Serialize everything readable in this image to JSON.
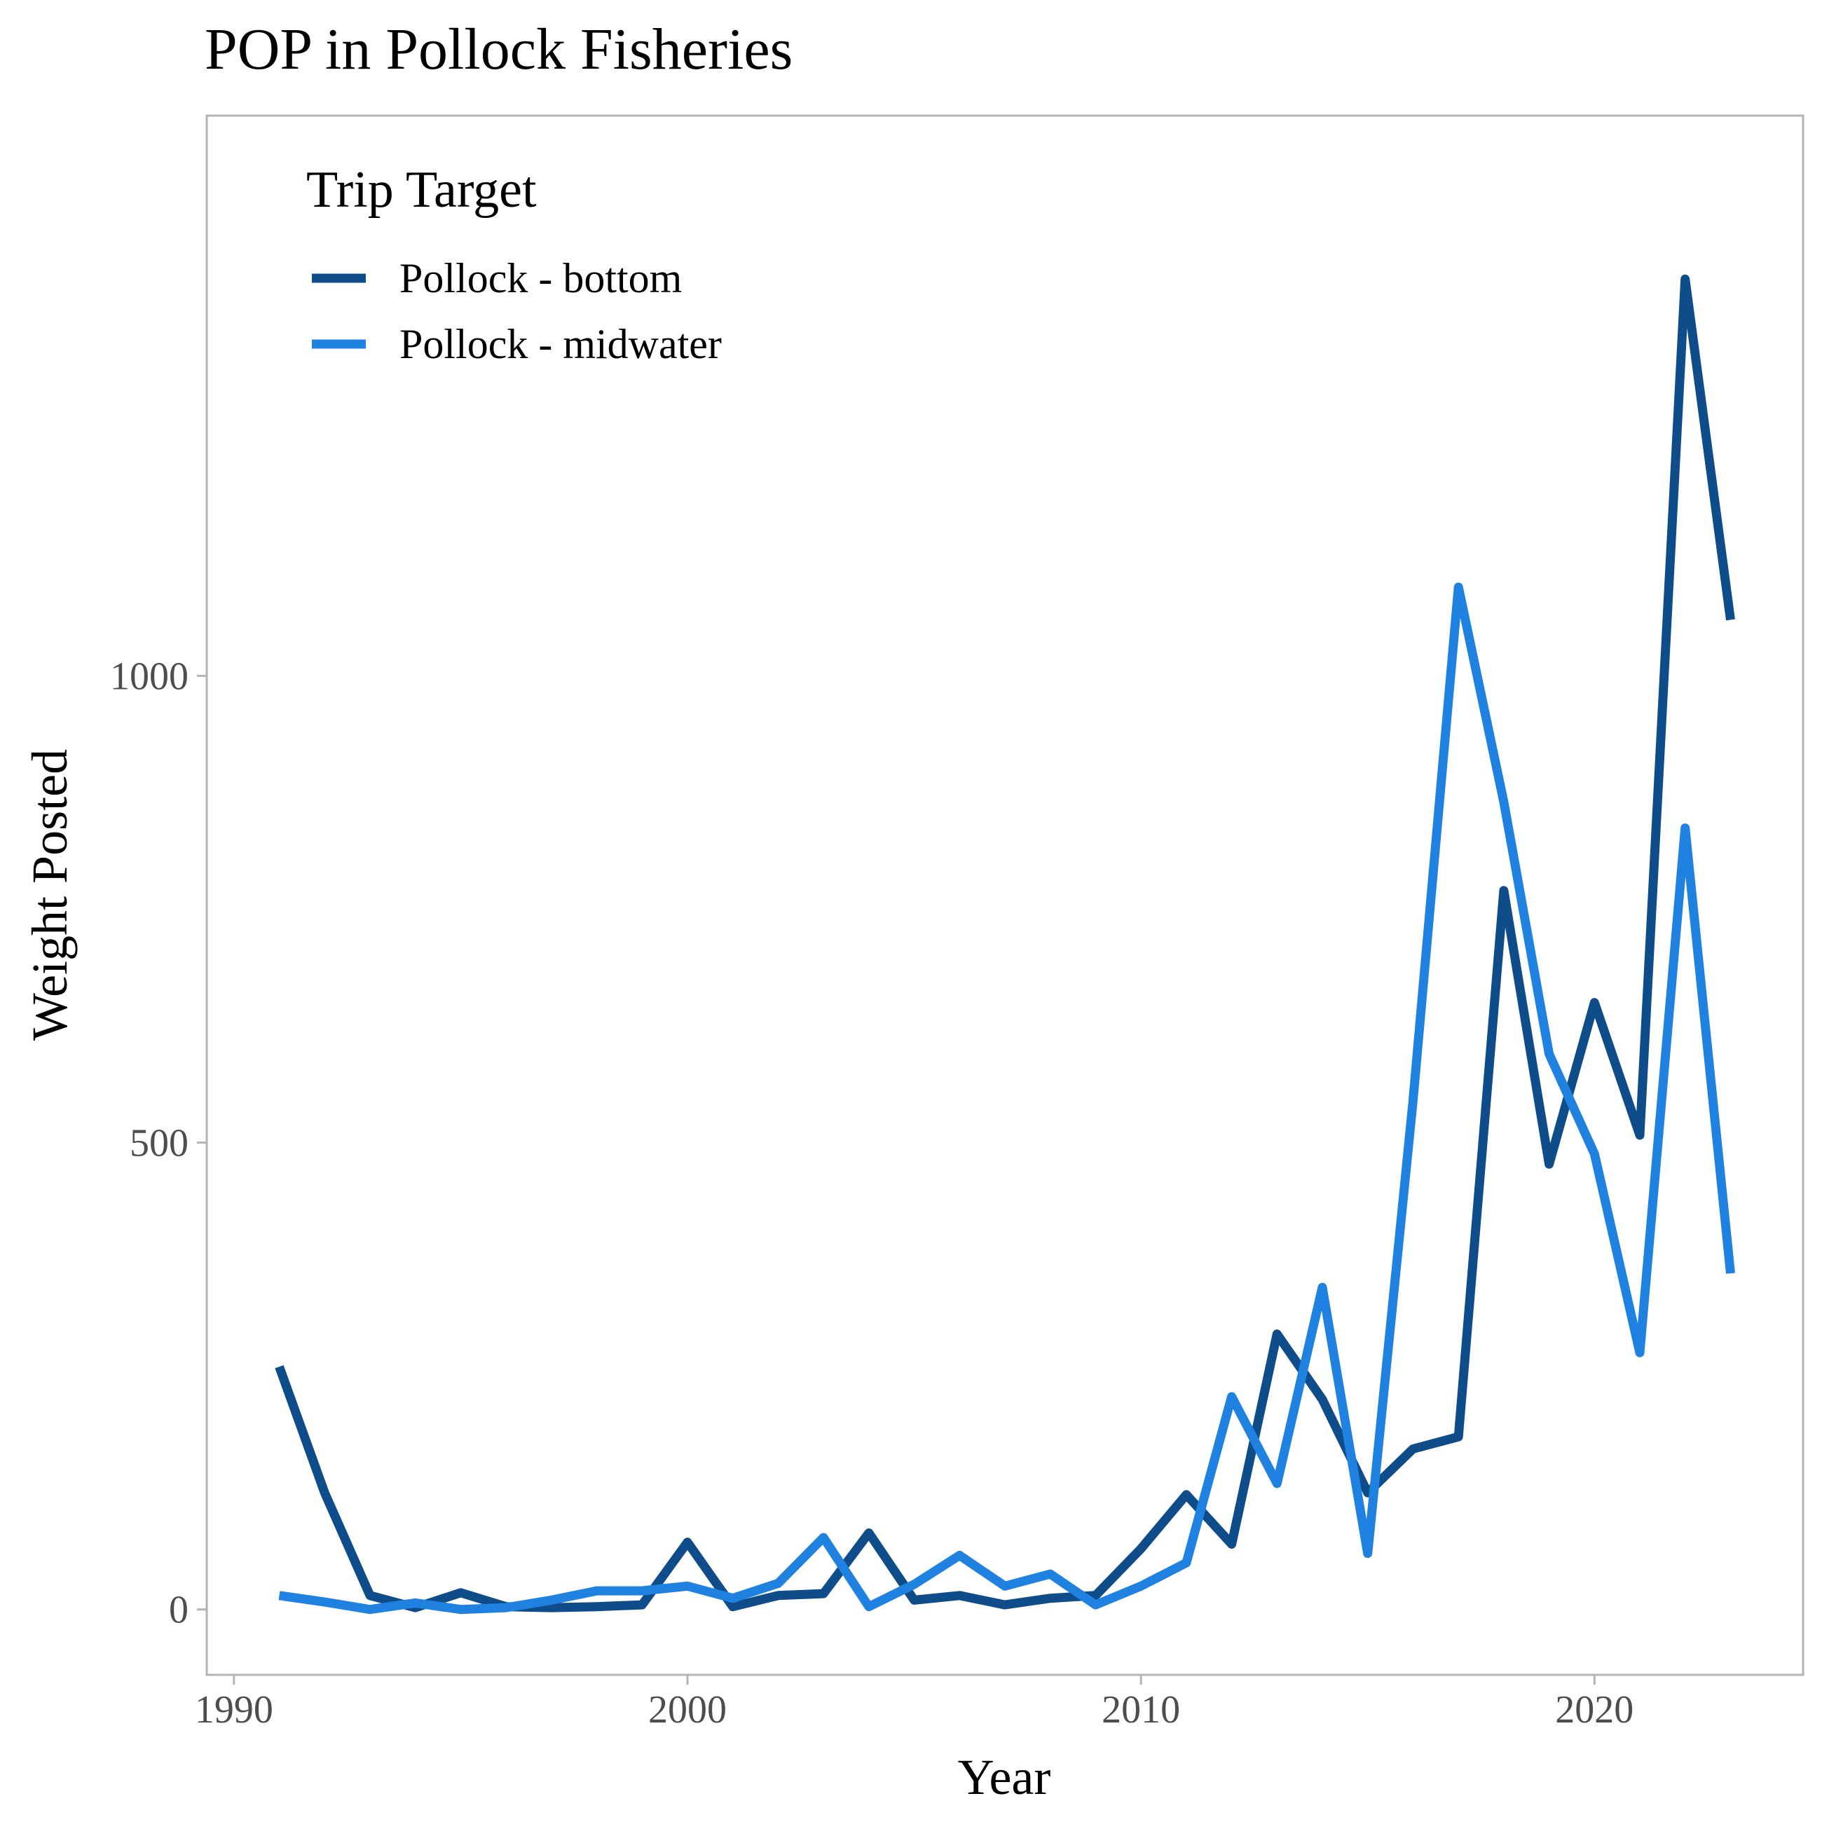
{
  "chart_data": {
    "type": "line",
    "title": "POP in Pollock Fisheries",
    "xlabel": "Year",
    "ylabel": "Weight Posted",
    "xlim": [
      1989.4,
      2024.6
    ],
    "ylim": [
      -70,
      1600
    ],
    "x_ticks": [
      1990,
      2000,
      2010,
      2020
    ],
    "y_ticks": [
      0,
      500,
      1000
    ],
    "grid": false,
    "legend": {
      "title": "Trip Target",
      "placement": "top-left"
    },
    "x": [
      1991,
      1992,
      1993,
      1994,
      1995,
      1996,
      1997,
      1998,
      1999,
      2000,
      2001,
      2002,
      2003,
      2004,
      2005,
      2006,
      2007,
      2008,
      2009,
      2010,
      2011,
      2012,
      2013,
      2014,
      2015,
      2016,
      2017,
      2018,
      2019,
      2020,
      2021,
      2022,
      2023
    ],
    "series": [
      {
        "name": "Pollock - bottom",
        "color": "#0f4c8a",
        "values": [
          260,
          125,
          15,
          2,
          18,
          3,
          2,
          3,
          5,
          72,
          3,
          15,
          17,
          82,
          10,
          15,
          5,
          12,
          15,
          65,
          123,
          70,
          295,
          225,
          125,
          172,
          185,
          770,
          477,
          650,
          508,
          1425,
          1060
        ]
      },
      {
        "name": "Pollock - midwater",
        "color": "#1f82e0",
        "values": [
          15,
          8,
          0,
          7,
          0,
          2,
          10,
          20,
          20,
          25,
          12,
          28,
          77,
          3,
          27,
          58,
          25,
          38,
          5,
          25,
          50,
          228,
          135,
          345,
          60,
          545,
          1095,
          865,
          595,
          488,
          275,
          837,
          360
        ]
      }
    ]
  }
}
